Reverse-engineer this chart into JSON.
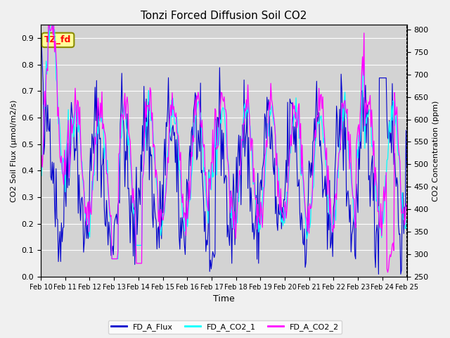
{
  "title": "Tonzi Forced Diffusion Soil CO2",
  "xlabel": "Time",
  "ylabel_left": "CO2 Soil Flux (μmol/m2/s)",
  "ylabel_right": "CO2 Concentration (ppm)",
  "ylim_left": [
    0.0,
    0.95
  ],
  "ylim_right": [
    250,
    810
  ],
  "yticks_left": [
    0.0,
    0.1,
    0.2,
    0.3,
    0.4,
    0.5,
    0.6,
    0.7,
    0.8,
    0.9
  ],
  "yticks_right": [
    250,
    300,
    350,
    400,
    450,
    500,
    550,
    600,
    650,
    700,
    750,
    800
  ],
  "xtick_labels": [
    "Feb 10",
    "Feb 11",
    "Feb 12",
    "Feb 13",
    "Feb 14",
    "Feb 15",
    "Feb 16",
    "Feb 17",
    "Feb 18",
    "Feb 19",
    "Feb 20",
    "Feb 21",
    "Feb 22",
    "Feb 23",
    "Feb 24",
    "Feb 25"
  ],
  "color_flux": "#0000CD",
  "color_co2_1": "#00FFFF",
  "color_co2_2": "#FF00FF",
  "label_flux": "FD_A_Flux",
  "label_co2_1": "FD_A_CO2_1",
  "label_co2_2": "FD_A_CO2_2",
  "annotation_text": "TZ_fd",
  "annotation_bg": "#FFFF99",
  "annotation_border": "#8B8B00",
  "background_color": "#D3D3D3",
  "grid_color": "#FFFFFF",
  "n_points": 480
}
